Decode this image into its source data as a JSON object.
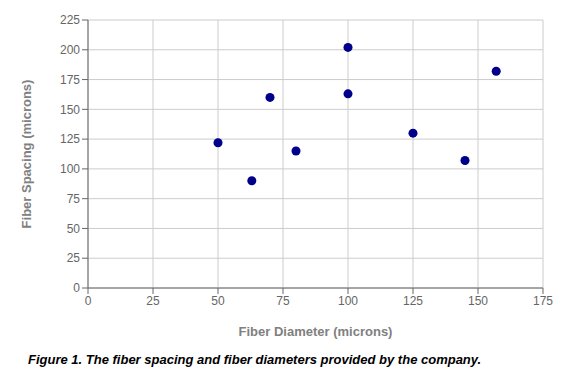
{
  "chart_data": {
    "type": "scatter",
    "x": [
      50,
      63,
      70,
      80,
      100,
      100,
      125,
      145,
      157
    ],
    "values": [
      122,
      90,
      160,
      115,
      202,
      163,
      130,
      107,
      182
    ],
    "color": "#00008B",
    "xlabel": "Fiber Diameter (microns)",
    "ylabel": "Fiber Spacing (microns)",
    "annotations": [
      "Figure 1. The fiber spacing and fiber diameters provided by the company."
    ],
    "xlim": [
      0,
      175
    ],
    "ylim": [
      0,
      225
    ],
    "xticks": [
      0,
      25,
      50,
      75,
      100,
      125,
      150,
      175
    ],
    "yticks": [
      0,
      25,
      50,
      75,
      100,
      125,
      150,
      175,
      200,
      225
    ],
    "grid": true
  }
}
